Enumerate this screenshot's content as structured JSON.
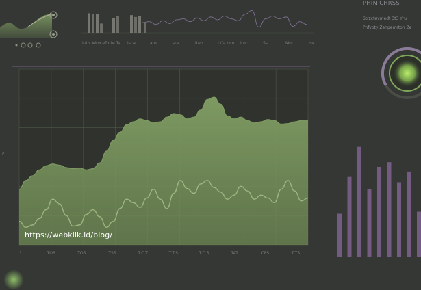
{
  "colors": {
    "background": "#343733",
    "chart_fill": "#6f8a55",
    "chart_fill_top": "#7e9a62",
    "chart_line": "#a8c08a",
    "grid": "#4e5a46",
    "accent_purple": "#7a5f8a",
    "accent_green": "#b9ec6a"
  },
  "header": {
    "title": "PHIN CHRSS",
    "line1": "Strzctevmedt 3t3 Yru",
    "line2": "Pnfyoty Zenpemrton Ze"
  },
  "top_bars": {
    "labels": [
      "Ivtls Wrvce",
      "Totte Ta",
      "Isca",
      "aro",
      "sre",
      "Iten",
      "Ltfa ocn",
      "Itoc",
      "Sst",
      "Mut",
      "zne"
    ]
  },
  "donut": {
    "level": 0.6
  },
  "main_chart": {
    "x_ticks": [
      "1",
      "TOS",
      "TOS",
      "TSS",
      "T.C.T",
      "T.T.S",
      "T.C.S",
      "TAT",
      "CFS",
      "T.TS"
    ],
    "y_tick": "F"
  },
  "url": "https://webklik.id/blog/",
  "chart_data": [
    {
      "type": "area",
      "title": "",
      "xlabel": "",
      "ylabel": "",
      "x": [
        0,
        1,
        2,
        3,
        4,
        5,
        6,
        7,
        8,
        9,
        10,
        11,
        12,
        13,
        14,
        15,
        16,
        17,
        18,
        19,
        20,
        21,
        22,
        23,
        24,
        25,
        26,
        27,
        28,
        29,
        30,
        31,
        32,
        33,
        34,
        35,
        36,
        37,
        38,
        39,
        40,
        41,
        42,
        43
      ],
      "series": [
        {
          "values": [
            95,
            110,
            118,
            128,
            135,
            138,
            136,
            132,
            130,
            131,
            128,
            130,
            140,
            160,
            178,
            192,
            205,
            210,
            215,
            212,
            208,
            210,
            218,
            224,
            222,
            215,
            218,
            230,
            248,
            252,
            240,
            220,
            215,
            218,
            212,
            208,
            210,
            214,
            212,
            206,
            207,
            210,
            212,
            213
          ]
        },
        {
          "values": [
            40,
            30,
            34,
            45,
            60,
            78,
            70,
            50,
            32,
            34,
            52,
            60,
            48,
            30,
            40,
            62,
            78,
            72,
            64,
            80,
            95,
            78,
            62,
            88,
            110,
            96,
            88,
            104,
            110,
            98,
            90,
            78,
            85,
            100,
            92,
            78,
            85,
            80,
            72,
            95,
            110,
            92,
            75,
            80
          ]
        }
      ],
      "ylim": [
        0,
        300
      ]
    },
    {
      "type": "bar",
      "title": "",
      "categories": [
        "1",
        "2",
        "3",
        "4",
        "5",
        "6",
        "7",
        "8",
        "9",
        "10",
        "11",
        "12"
      ],
      "values": [
        65,
        120,
        165,
        102,
        135,
        142,
        112,
        128,
        68,
        118,
        92,
        100
      ],
      "ylim": [
        0,
        180
      ]
    },
    {
      "type": "bar",
      "title": "",
      "categories": [
        "1",
        "2",
        "3",
        "4",
        "5",
        "6",
        "7",
        "8",
        "9",
        "10",
        "11",
        "12",
        "13",
        "14",
        "15",
        "16",
        "17",
        "18"
      ],
      "values": [
        42,
        40,
        40,
        20,
        32,
        36,
        38,
        34,
        36,
        22,
        12,
        30,
        36,
        30,
        34,
        14,
        24,
        18
      ],
      "ylim": [
        0,
        50
      ]
    }
  ]
}
